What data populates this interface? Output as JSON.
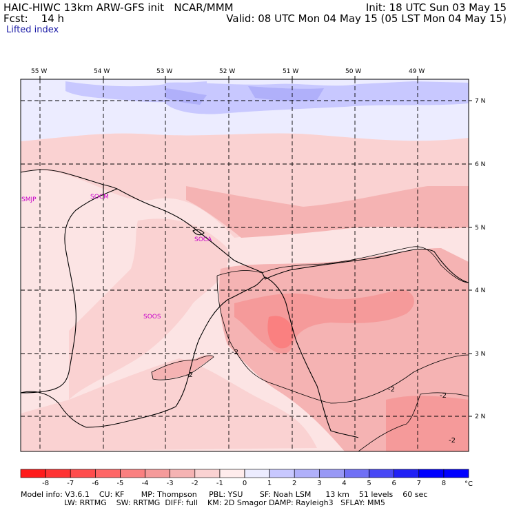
{
  "header": {
    "title_left": "HAIC-HIWC 13km ARW-GFS init   NCAR/MMM",
    "fcst_line": "Fcst:    14 h",
    "init_line": "Init: 18 UTC Sun 03 May 15",
    "valid_line": "Valid: 08 UTC Mon 04 May 15 (05 LST Mon 04 May 15)",
    "field_name": "Lifted index"
  },
  "map": {
    "lon_labels": [
      "55 W",
      "54 W",
      "53 W",
      "52 W",
      "51 W",
      "50 W",
      "49 W"
    ],
    "lat_labels": [
      "7 N",
      "6 N",
      "5 N",
      "4 N",
      "3 N",
      "2 N"
    ],
    "stations": [
      "SMJP",
      "SOCM",
      "SOCA",
      "SOOS"
    ],
    "contour_labels": [
      "-2",
      "-2",
      "-2",
      "-2",
      "-2"
    ]
  },
  "colorbar": {
    "tick_labels": [
      "-8",
      "-7",
      "-6",
      "-5",
      "-4",
      "-3",
      "-2",
      "-1",
      "0",
      "1",
      "2",
      "3",
      "4",
      "5",
      "6",
      "7",
      "8"
    ],
    "unit": "°C",
    "colors": [
      "#ff1a1a",
      "#ff3333",
      "#ff4d4d",
      "#ff6666",
      "#fa8080",
      "#f59a9a",
      "#f5b3b3",
      "#fad2d2",
      "#ffecec",
      "#ececff",
      "#c8c8ff",
      "#b0b0fa",
      "#9898f5",
      "#7070f5",
      "#4848f5",
      "#2020f5",
      "#0000ff"
    ]
  },
  "footer": {
    "line1": "Model info: V3.6.1    CU: KF       MP: Thompson     PBL: YSU       SF: Noah LSM      13 km    51 levels    60 sec",
    "line2": "                  LW: RRTMG    SW: RRTMG  DIFF: full    KM: 2D Smagor DAMP: Rayleigh3   SFLAY: MM5"
  }
}
